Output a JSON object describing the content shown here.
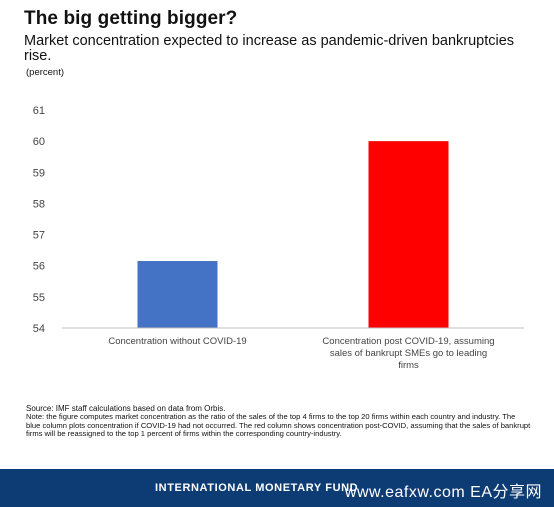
{
  "header": {
    "title": "The big getting bigger?",
    "subtitle": "Market concentration expected to increase as pandemic-driven bankruptcies rise.",
    "unit": "(percent)"
  },
  "chart_data": {
    "type": "bar",
    "title": "The big getting bigger?",
    "subtitle": "Market concentration expected to increase as pandemic-driven bankruptcies rise.",
    "ylabel": "(percent)",
    "xlabel": "",
    "categories": [
      "Concentration without COVID-19",
      "Concentration post COVID-19, assuming sales of bankrupt SMEs go to leading firms"
    ],
    "category_lines": [
      [
        "Concentration without COVID-19"
      ],
      [
        "Concentration post COVID-19, assuming",
        "sales of bankrupt SMEs go to leading",
        "firms"
      ]
    ],
    "values": [
      56.15,
      60.0
    ],
    "bar_colors": [
      "#4472c4",
      "#ff0000"
    ],
    "ylim": [
      54,
      61
    ],
    "yticks": [
      54,
      55,
      56,
      57,
      58,
      59,
      60,
      61
    ],
    "grid": false,
    "legend": "none"
  },
  "notes": {
    "source": "Source: IMF staff calculations based on data from Orbis.",
    "note": "Note: the figure computes market concentration as the ratio of the sales of the top 4 firms to the top 20 firms within each country and industry. The blue column plots concentration if COVID-19 had not occurred. The red column shows concentration post-COVID, assuming that the sales of bankrupt firms will be reassigned to the top 1 percent of firms within the corresponding country-industry."
  },
  "footer": {
    "organization": "INTERNATIONAL MONETARY FUND",
    "watermark": "www.eafxw.com EA分享网",
    "background_color": "#0d3b73"
  }
}
